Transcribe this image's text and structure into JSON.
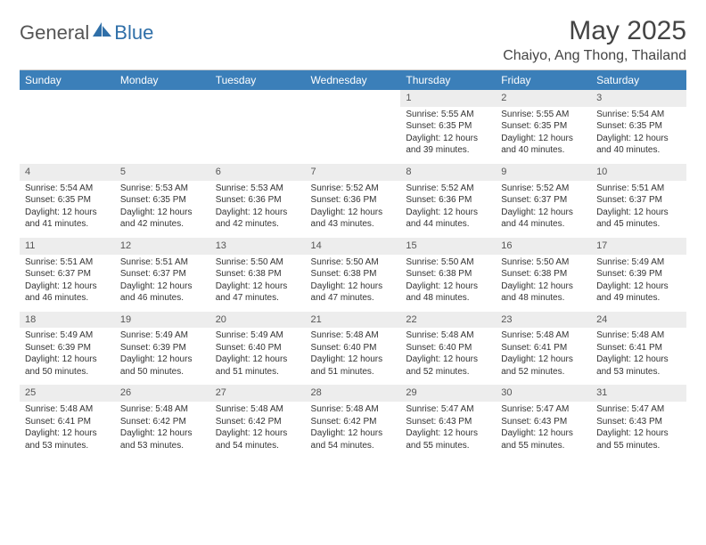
{
  "brand": {
    "part1": "General",
    "part2": "Blue"
  },
  "title": "May 2025",
  "location": "Chaiyo, Ang Thong, Thailand",
  "colors": {
    "header_bg": "#3b7fb9",
    "header_text": "#ffffff",
    "daynum_bg": "#ededed",
    "text": "#333333",
    "brand_accent": "#2f6fa8"
  },
  "weekdays": [
    "Sunday",
    "Monday",
    "Tuesday",
    "Wednesday",
    "Thursday",
    "Friday",
    "Saturday"
  ],
  "weeks": [
    {
      "nums": [
        "",
        "",
        "",
        "",
        "1",
        "2",
        "3"
      ],
      "cells": [
        null,
        null,
        null,
        null,
        {
          "sunrise": "Sunrise: 5:55 AM",
          "sunset": "Sunset: 6:35 PM",
          "day1": "Daylight: 12 hours",
          "day2": "and 39 minutes."
        },
        {
          "sunrise": "Sunrise: 5:55 AM",
          "sunset": "Sunset: 6:35 PM",
          "day1": "Daylight: 12 hours",
          "day2": "and 40 minutes."
        },
        {
          "sunrise": "Sunrise: 5:54 AM",
          "sunset": "Sunset: 6:35 PM",
          "day1": "Daylight: 12 hours",
          "day2": "and 40 minutes."
        }
      ]
    },
    {
      "nums": [
        "4",
        "5",
        "6",
        "7",
        "8",
        "9",
        "10"
      ],
      "cells": [
        {
          "sunrise": "Sunrise: 5:54 AM",
          "sunset": "Sunset: 6:35 PM",
          "day1": "Daylight: 12 hours",
          "day2": "and 41 minutes."
        },
        {
          "sunrise": "Sunrise: 5:53 AM",
          "sunset": "Sunset: 6:35 PM",
          "day1": "Daylight: 12 hours",
          "day2": "and 42 minutes."
        },
        {
          "sunrise": "Sunrise: 5:53 AM",
          "sunset": "Sunset: 6:36 PM",
          "day1": "Daylight: 12 hours",
          "day2": "and 42 minutes."
        },
        {
          "sunrise": "Sunrise: 5:52 AM",
          "sunset": "Sunset: 6:36 PM",
          "day1": "Daylight: 12 hours",
          "day2": "and 43 minutes."
        },
        {
          "sunrise": "Sunrise: 5:52 AM",
          "sunset": "Sunset: 6:36 PM",
          "day1": "Daylight: 12 hours",
          "day2": "and 44 minutes."
        },
        {
          "sunrise": "Sunrise: 5:52 AM",
          "sunset": "Sunset: 6:37 PM",
          "day1": "Daylight: 12 hours",
          "day2": "and 44 minutes."
        },
        {
          "sunrise": "Sunrise: 5:51 AM",
          "sunset": "Sunset: 6:37 PM",
          "day1": "Daylight: 12 hours",
          "day2": "and 45 minutes."
        }
      ]
    },
    {
      "nums": [
        "11",
        "12",
        "13",
        "14",
        "15",
        "16",
        "17"
      ],
      "cells": [
        {
          "sunrise": "Sunrise: 5:51 AM",
          "sunset": "Sunset: 6:37 PM",
          "day1": "Daylight: 12 hours",
          "day2": "and 46 minutes."
        },
        {
          "sunrise": "Sunrise: 5:51 AM",
          "sunset": "Sunset: 6:37 PM",
          "day1": "Daylight: 12 hours",
          "day2": "and 46 minutes."
        },
        {
          "sunrise": "Sunrise: 5:50 AM",
          "sunset": "Sunset: 6:38 PM",
          "day1": "Daylight: 12 hours",
          "day2": "and 47 minutes."
        },
        {
          "sunrise": "Sunrise: 5:50 AM",
          "sunset": "Sunset: 6:38 PM",
          "day1": "Daylight: 12 hours",
          "day2": "and 47 minutes."
        },
        {
          "sunrise": "Sunrise: 5:50 AM",
          "sunset": "Sunset: 6:38 PM",
          "day1": "Daylight: 12 hours",
          "day2": "and 48 minutes."
        },
        {
          "sunrise": "Sunrise: 5:50 AM",
          "sunset": "Sunset: 6:38 PM",
          "day1": "Daylight: 12 hours",
          "day2": "and 48 minutes."
        },
        {
          "sunrise": "Sunrise: 5:49 AM",
          "sunset": "Sunset: 6:39 PM",
          "day1": "Daylight: 12 hours",
          "day2": "and 49 minutes."
        }
      ]
    },
    {
      "nums": [
        "18",
        "19",
        "20",
        "21",
        "22",
        "23",
        "24"
      ],
      "cells": [
        {
          "sunrise": "Sunrise: 5:49 AM",
          "sunset": "Sunset: 6:39 PM",
          "day1": "Daylight: 12 hours",
          "day2": "and 50 minutes."
        },
        {
          "sunrise": "Sunrise: 5:49 AM",
          "sunset": "Sunset: 6:39 PM",
          "day1": "Daylight: 12 hours",
          "day2": "and 50 minutes."
        },
        {
          "sunrise": "Sunrise: 5:49 AM",
          "sunset": "Sunset: 6:40 PM",
          "day1": "Daylight: 12 hours",
          "day2": "and 51 minutes."
        },
        {
          "sunrise": "Sunrise: 5:48 AM",
          "sunset": "Sunset: 6:40 PM",
          "day1": "Daylight: 12 hours",
          "day2": "and 51 minutes."
        },
        {
          "sunrise": "Sunrise: 5:48 AM",
          "sunset": "Sunset: 6:40 PM",
          "day1": "Daylight: 12 hours",
          "day2": "and 52 minutes."
        },
        {
          "sunrise": "Sunrise: 5:48 AM",
          "sunset": "Sunset: 6:41 PM",
          "day1": "Daylight: 12 hours",
          "day2": "and 52 minutes."
        },
        {
          "sunrise": "Sunrise: 5:48 AM",
          "sunset": "Sunset: 6:41 PM",
          "day1": "Daylight: 12 hours",
          "day2": "and 53 minutes."
        }
      ]
    },
    {
      "nums": [
        "25",
        "26",
        "27",
        "28",
        "29",
        "30",
        "31"
      ],
      "cells": [
        {
          "sunrise": "Sunrise: 5:48 AM",
          "sunset": "Sunset: 6:41 PM",
          "day1": "Daylight: 12 hours",
          "day2": "and 53 minutes."
        },
        {
          "sunrise": "Sunrise: 5:48 AM",
          "sunset": "Sunset: 6:42 PM",
          "day1": "Daylight: 12 hours",
          "day2": "and 53 minutes."
        },
        {
          "sunrise": "Sunrise: 5:48 AM",
          "sunset": "Sunset: 6:42 PM",
          "day1": "Daylight: 12 hours",
          "day2": "and 54 minutes."
        },
        {
          "sunrise": "Sunrise: 5:48 AM",
          "sunset": "Sunset: 6:42 PM",
          "day1": "Daylight: 12 hours",
          "day2": "and 54 minutes."
        },
        {
          "sunrise": "Sunrise: 5:47 AM",
          "sunset": "Sunset: 6:43 PM",
          "day1": "Daylight: 12 hours",
          "day2": "and 55 minutes."
        },
        {
          "sunrise": "Sunrise: 5:47 AM",
          "sunset": "Sunset: 6:43 PM",
          "day1": "Daylight: 12 hours",
          "day2": "and 55 minutes."
        },
        {
          "sunrise": "Sunrise: 5:47 AM",
          "sunset": "Sunset: 6:43 PM",
          "day1": "Daylight: 12 hours",
          "day2": "and 55 minutes."
        }
      ]
    }
  ]
}
